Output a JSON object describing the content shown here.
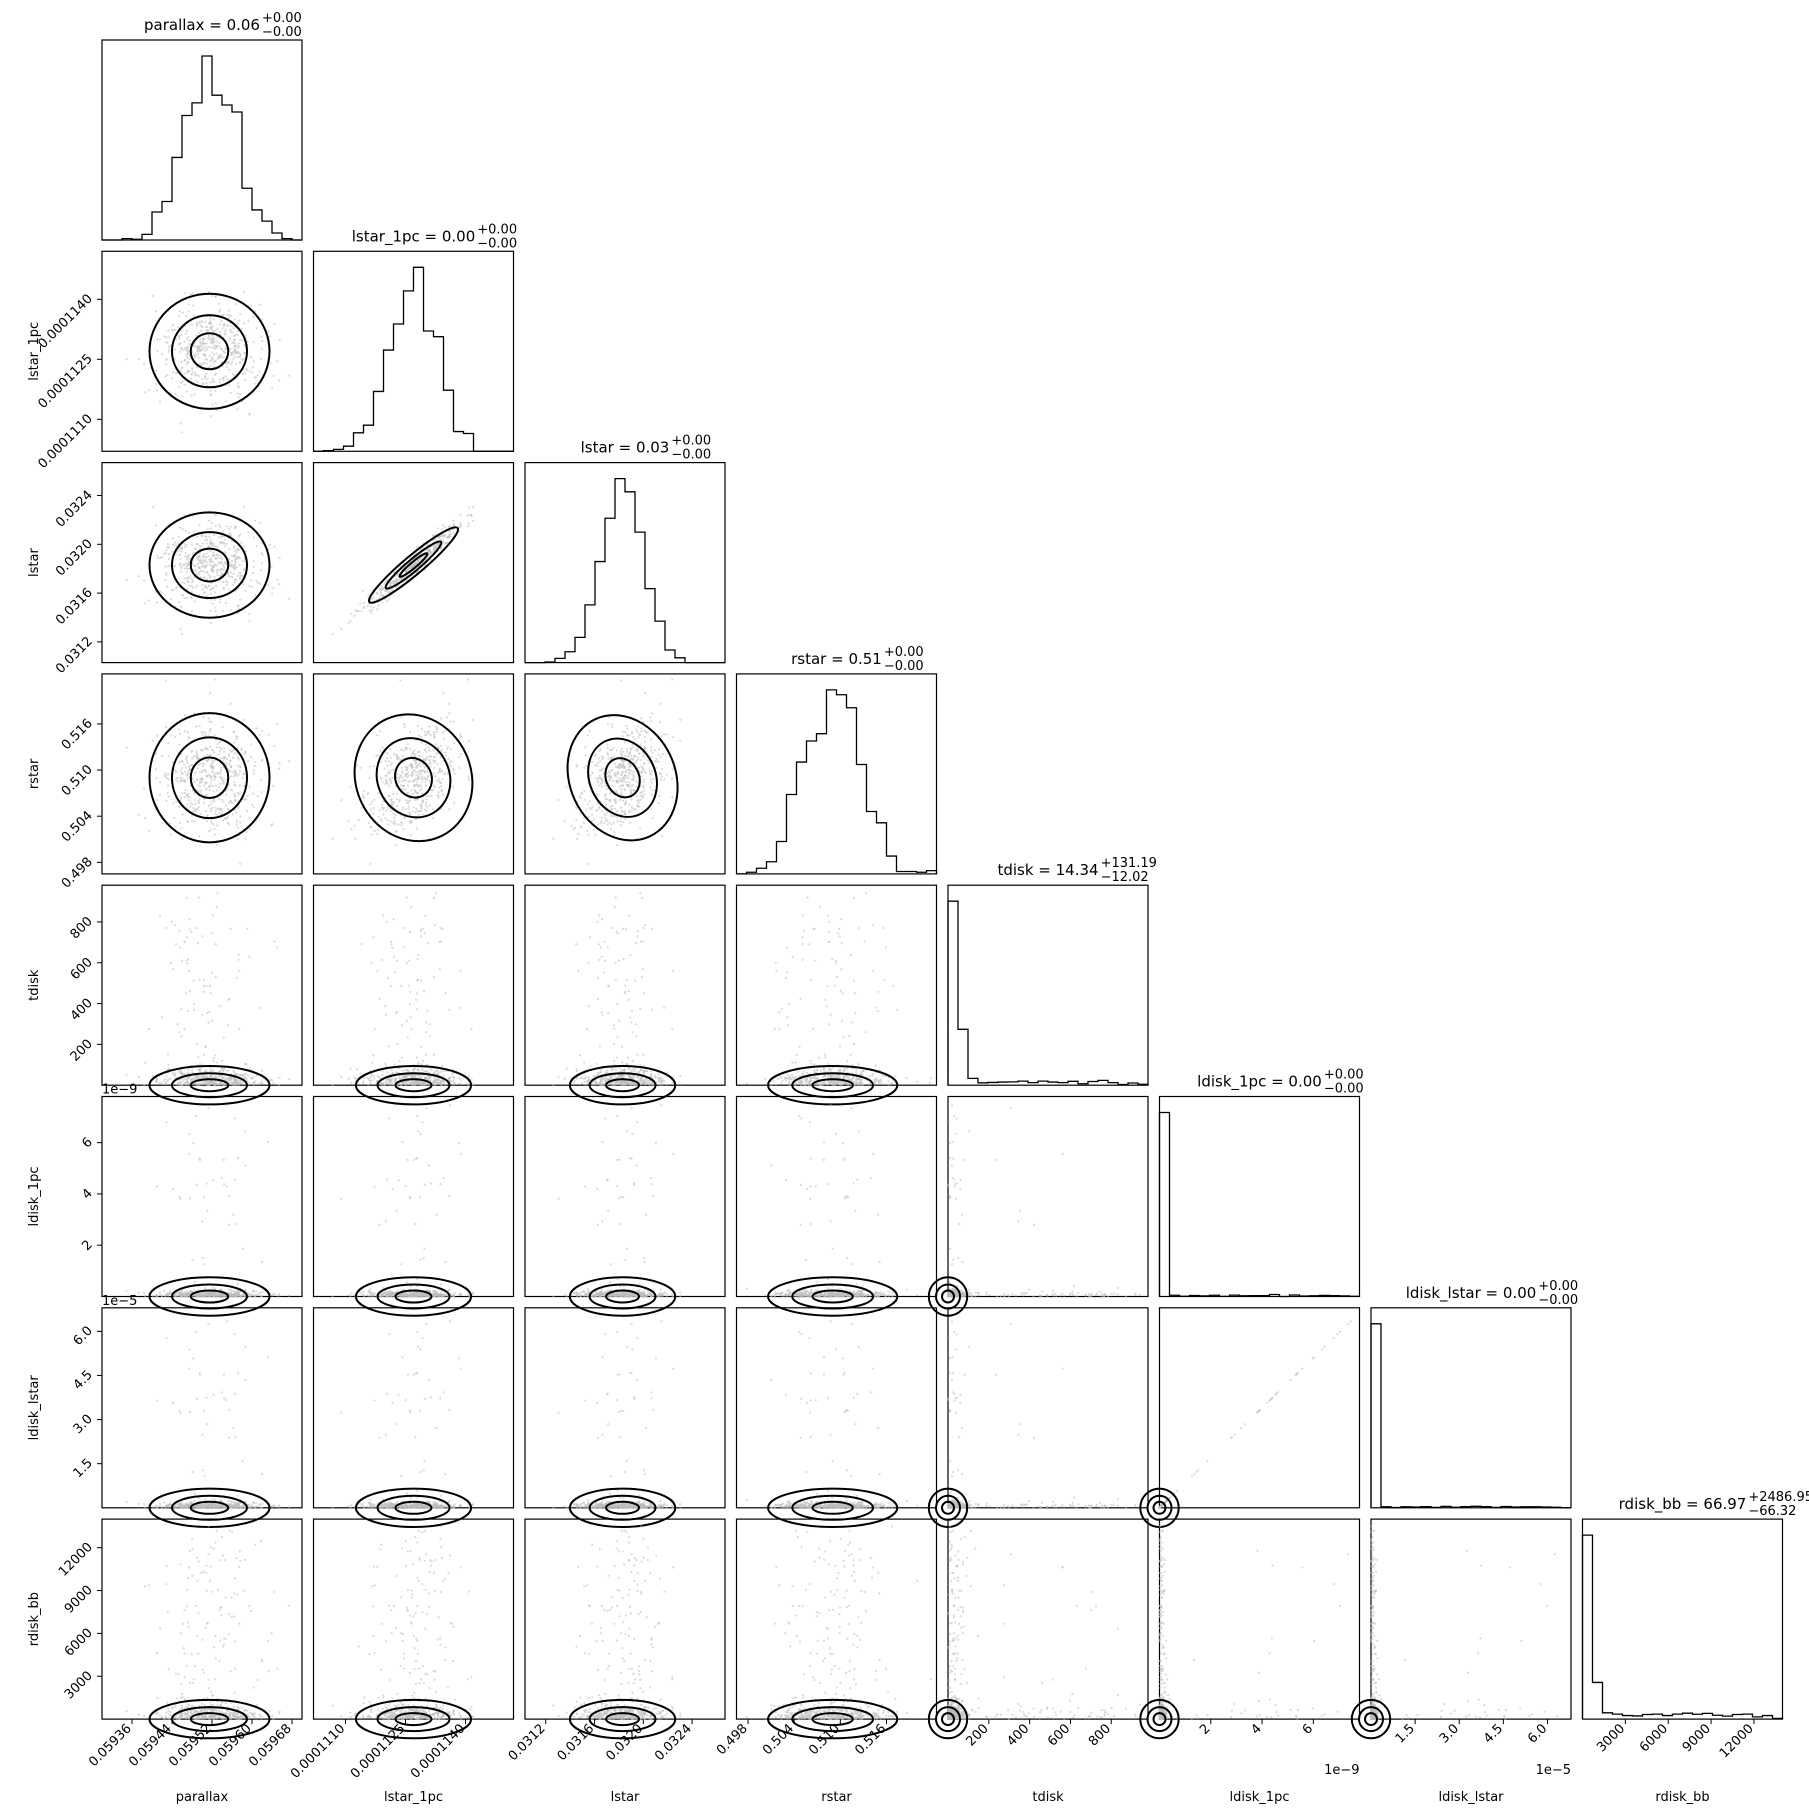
{
  "chart_data": {
    "type": "scatter",
    "kind": "corner-plot",
    "parameters": [
      {
        "name": "parallax",
        "label": "parallax",
        "median": 0.059515,
        "sigma": 5e-05,
        "range": [
          0.0593,
          0.0597
        ],
        "ticks": [
          0.05936,
          0.05944,
          0.05952,
          0.0596,
          0.05968
        ],
        "tick_labels": [
          "0.05936",
          "0.05944",
          "0.05952",
          "0.05960",
          "0.05968"
        ],
        "title": {
          "lead": "parallax = 0.06",
          "sup": "+0.00",
          "sub": "−0.00"
        }
      },
      {
        "name": "lstar_1pc",
        "label": "lstar_1pc",
        "median": 0.0001127,
        "sigma": 6e-07,
        "range": [
          0.0001102,
          0.0001152
        ],
        "ticks": [
          0.000111,
          0.0001125,
          0.000114
        ],
        "tick_labels": [
          "0.0001110",
          "0.0001125",
          "0.0001140"
        ],
        "title": {
          "lead": "lstar_1pc = 0.00",
          "sup": "+0.00",
          "sub": "−0.00"
        }
      },
      {
        "name": "lstar",
        "label": "lstar",
        "median": 0.03183,
        "sigma": 0.00018,
        "range": [
          0.03103,
          0.03267
        ],
        "ticks": [
          0.0312,
          0.0316,
          0.032,
          0.0324
        ],
        "tick_labels": [
          "0.0312",
          "0.0316",
          "0.0320",
          "0.0324"
        ],
        "title": {
          "lead": "lstar = 0.03",
          "sup": "+0.00",
          "sub": "−0.00"
        }
      },
      {
        "name": "rstar",
        "label": "rstar",
        "median": 0.509,
        "sigma": 0.0035,
        "range": [
          0.4965,
          0.5225
        ],
        "ticks": [
          0.498,
          0.504,
          0.51,
          0.516
        ],
        "tick_labels": [
          "0.498",
          "0.504",
          "0.510",
          "0.516"
        ],
        "title": {
          "lead": "rstar = 0.51",
          "sup": "+0.00",
          "sub": "−0.00"
        }
      },
      {
        "name": "tdisk",
        "label": "tdisk",
        "median": 14.34,
        "range": [
          0,
          980
        ],
        "ticks": [
          200,
          400,
          600,
          800
        ],
        "tick_labels": [
          "200",
          "400",
          "600",
          "800"
        ],
        "title": {
          "lead": "tdisk = 14.34",
          "sup": "+131.19",
          "sub": "−12.02"
        }
      },
      {
        "name": "ldisk_1pc",
        "label": "ldisk_1pc",
        "median": 0.0,
        "range": [
          0,
          7.8
        ],
        "ticks": [
          2,
          4,
          6
        ],
        "tick_labels": [
          "2",
          "4",
          "6"
        ],
        "offset": "1e−9",
        "title": {
          "lead": "ldisk_1pc = 0.00",
          "sup": "+0.00",
          "sub": "−0.00"
        }
      },
      {
        "name": "ldisk_lstar",
        "label": "ldisk_lstar",
        "median": 0.0,
        "range": [
          0,
          6.8
        ],
        "ticks": [
          1.5,
          3.0,
          4.5,
          6.0
        ],
        "tick_labels": [
          "1.5",
          "3.0",
          "4.5",
          "6.0"
        ],
        "offset": "1e−5",
        "title": {
          "lead": "ldisk_lstar = 0.00",
          "sup": "+0.00",
          "sub": "−0.00"
        }
      },
      {
        "name": "rdisk_bb",
        "label": "rdisk_bb",
        "median": 66.97,
        "range": [
          0,
          14000
        ],
        "ticks": [
          3000,
          6000,
          9000,
          12000
        ],
        "tick_labels": [
          "3000",
          "6000",
          "9000",
          "12000"
        ],
        "title": {
          "lead": "rdisk_bb = 66.97",
          "sup": "+2486.95",
          "sub": "−66.32"
        }
      }
    ],
    "grid": false,
    "legend": "none"
  }
}
